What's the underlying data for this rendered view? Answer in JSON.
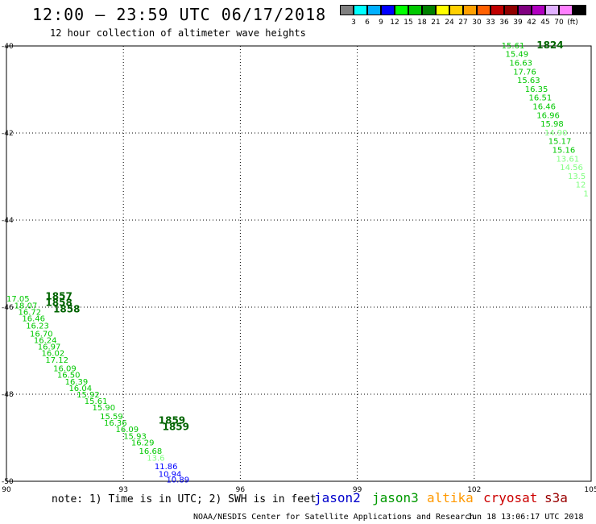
{
  "header": {
    "title": "12:00 – 23:59 UTC 06/17/2018",
    "subtitle": "12 hour collection of altimeter wave heights"
  },
  "colorbar": {
    "swatches": [
      "#808080",
      "#00ffff",
      "#00b0ff",
      "#0000ff",
      "#00ff00",
      "#00c800",
      "#008000",
      "#ffff00",
      "#ffd000",
      "#ffa000",
      "#ff6000",
      "#c00000",
      "#900000",
      "#800080",
      "#b000c0",
      "#e0b0ff",
      "#ff80ff",
      "#000000"
    ],
    "labels": [
      "3",
      "6",
      "9",
      "12",
      "15",
      "18",
      "21",
      "24",
      "27",
      "30",
      "33",
      "36",
      "39",
      "42",
      "45",
      "70",
      "(ft)"
    ]
  },
  "axes": {
    "lon_ticks": [
      "90",
      "93",
      "96",
      "99",
      "102",
      "105"
    ],
    "lat_ticks": [
      "-40",
      "-42",
      "-44",
      "-46",
      "-48",
      "-50"
    ]
  },
  "legend": {
    "note": "note: 1) Time is in UTC; 2) SWH is in feet",
    "satellites": [
      {
        "name": "jason2",
        "color": "#0000cc"
      },
      {
        "name": "jason3",
        "color": "#009900"
      },
      {
        "name": "altika",
        "color": "#ff9900"
      },
      {
        "name": "cryosat",
        "color": "#cc0000"
      },
      {
        "name": "s3a",
        "color": "#990000"
      }
    ]
  },
  "footer": {
    "credit": "NOAA/NESDIS Center for Satellite Applications and Research",
    "timestamp": "Jun 18 13:06:17 UTC 2018"
  },
  "map_data": {
    "lon_range": [
      90,
      105
    ],
    "lat_range": [
      -50,
      -40
    ],
    "time_labels": [
      {
        "text": "1824",
        "lon": 103.6,
        "lat": -39.98
      },
      {
        "text": "1857",
        "lon": 91.0,
        "lat": -45.75
      },
      {
        "text": "1858",
        "lon": 91.0,
        "lat": -45.9
      },
      {
        "text": "1858",
        "lon": 91.2,
        "lat": -46.05
      },
      {
        "text": "1859",
        "lon": 93.9,
        "lat": -48.6
      },
      {
        "text": "1859",
        "lon": 94.0,
        "lat": -48.75
      }
    ],
    "track_east": [
      {
        "text": "15.61",
        "lon": 102.7,
        "lat": -39.98,
        "c": "#00c800"
      },
      {
        "text": "15.49",
        "lon": 102.8,
        "lat": -40.18,
        "c": "#00c800"
      },
      {
        "text": "16.63",
        "lon": 102.9,
        "lat": -40.38,
        "c": "#00c800"
      },
      {
        "text": "17.76",
        "lon": 103.0,
        "lat": -40.58,
        "c": "#00c800"
      },
      {
        "text": "15.63",
        "lon": 103.1,
        "lat": -40.78,
        "c": "#00c800"
      },
      {
        "text": "16.35",
        "lon": 103.3,
        "lat": -40.98,
        "c": "#00c800"
      },
      {
        "text": "16.51",
        "lon": 103.4,
        "lat": -41.18,
        "c": "#00c800"
      },
      {
        "text": "16.46",
        "lon": 103.5,
        "lat": -41.38,
        "c": "#00c800"
      },
      {
        "text": "16.96",
        "lon": 103.6,
        "lat": -41.58,
        "c": "#00c800"
      },
      {
        "text": "15.98",
        "lon": 103.7,
        "lat": -41.78,
        "c": "#00c800"
      },
      {
        "text": "14.90",
        "lon": 103.8,
        "lat": -41.98,
        "c": "#80ff80"
      },
      {
        "text": "15.17",
        "lon": 103.9,
        "lat": -42.18,
        "c": "#00c800"
      },
      {
        "text": "15.16",
        "lon": 104.0,
        "lat": -42.38,
        "c": "#00c800"
      },
      {
        "text": "13.61",
        "lon": 104.1,
        "lat": -42.58,
        "c": "#80ff80"
      },
      {
        "text": "14.56",
        "lon": 104.2,
        "lat": -42.78,
        "c": "#80ff80"
      },
      {
        "text": "13.5",
        "lon": 104.4,
        "lat": -42.98,
        "c": "#80ff80"
      },
      {
        "text": "12",
        "lon": 104.6,
        "lat": -43.18,
        "c": "#80ff80"
      },
      {
        "text": "1",
        "lon": 104.8,
        "lat": -43.38,
        "c": "#80ff80"
      }
    ],
    "track_west": [
      {
        "text": "17.05",
        "lon": 90.0,
        "lat": -45.8,
        "c": "#00c800"
      },
      {
        "text": "18.07",
        "lon": 90.2,
        "lat": -45.95,
        "c": "#00c800"
      },
      {
        "text": "16.72",
        "lon": 90.3,
        "lat": -46.1,
        "c": "#00c800"
      },
      {
        "text": "16.46",
        "lon": 90.4,
        "lat": -46.25,
        "c": "#00c800"
      },
      {
        "text": "16.23",
        "lon": 90.5,
        "lat": -46.42,
        "c": "#00c800"
      },
      {
        "text": "16.70",
        "lon": 90.6,
        "lat": -46.6,
        "c": "#00c800"
      },
      {
        "text": "16.24",
        "lon": 90.7,
        "lat": -46.75,
        "c": "#00c800"
      },
      {
        "text": "16.97",
        "lon": 90.8,
        "lat": -46.9,
        "c": "#00c800"
      },
      {
        "text": "16.02",
        "lon": 90.9,
        "lat": -47.05,
        "c": "#00c800"
      },
      {
        "text": "17.12",
        "lon": 91.0,
        "lat": -47.2,
        "c": "#00c800"
      },
      {
        "text": "16.09",
        "lon": 91.2,
        "lat": -47.4,
        "c": "#00c800"
      },
      {
        "text": "16.50",
        "lon": 91.3,
        "lat": -47.55,
        "c": "#00c800"
      },
      {
        "text": "16.39",
        "lon": 91.5,
        "lat": -47.7,
        "c": "#00c800"
      },
      {
        "text": "16.04",
        "lon": 91.6,
        "lat": -47.85,
        "c": "#00c800"
      },
      {
        "text": "15.92",
        "lon": 91.8,
        "lat": -48.0,
        "c": "#00c800"
      },
      {
        "text": "15.61",
        "lon": 92.0,
        "lat": -48.15,
        "c": "#00c800"
      },
      {
        "text": "15.90",
        "lon": 92.2,
        "lat": -48.3,
        "c": "#00c800"
      },
      {
        "text": "15.59",
        "lon": 92.4,
        "lat": -48.5,
        "c": "#00c800"
      },
      {
        "text": "16.36",
        "lon": 92.5,
        "lat": -48.65,
        "c": "#00c800"
      },
      {
        "text": "16.09",
        "lon": 92.8,
        "lat": -48.8,
        "c": "#00c800"
      },
      {
        "text": "15.93",
        "lon": 93.0,
        "lat": -48.95,
        "c": "#00c800"
      },
      {
        "text": "16.29",
        "lon": 93.2,
        "lat": -49.1,
        "c": "#00c800"
      },
      {
        "text": "16.68",
        "lon": 93.4,
        "lat": -49.3,
        "c": "#00c800"
      },
      {
        "text": "13.6",
        "lon": 93.6,
        "lat": -49.45,
        "c": "#80ff80"
      },
      {
        "text": "11.86",
        "lon": 93.8,
        "lat": -49.65,
        "c": "#0000ff"
      },
      {
        "text": "10.94",
        "lon": 93.9,
        "lat": -49.82,
        "c": "#0000ff"
      },
      {
        "text": "10.89",
        "lon": 94.1,
        "lat": -49.95,
        "c": "#0000ff"
      }
    ]
  }
}
